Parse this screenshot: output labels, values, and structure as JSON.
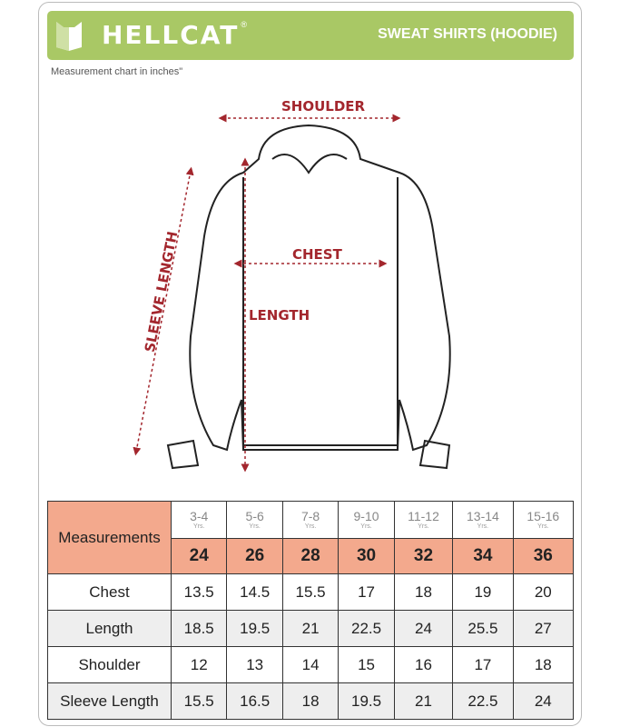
{
  "header": {
    "brand": "HELLCAT",
    "registered": "®",
    "product": "SWEAT SHIRTS (HOODIE)"
  },
  "subtitle": "Measurement chart in inches\"",
  "diagram": {
    "shoulder": "SHOULDER",
    "chest": "CHEST",
    "length": "LENGTH",
    "sleeve": "SLEEVE LENGTH",
    "accent": "#a3262d"
  },
  "table": {
    "label": "Measurements",
    "ages": [
      "3-4",
      "5-6",
      "7-8",
      "9-10",
      "11-12",
      "13-14",
      "15-16"
    ],
    "age_unit": "Yrs.",
    "sizes": [
      "24",
      "26",
      "28",
      "30",
      "32",
      "34",
      "36"
    ],
    "rows": [
      {
        "name": "Chest",
        "values": [
          "13.5",
          "14.5",
          "15.5",
          "17",
          "18",
          "19",
          "20"
        ]
      },
      {
        "name": "Length",
        "values": [
          "18.5",
          "19.5",
          "21",
          "22.5",
          "24",
          "25.5",
          "27"
        ]
      },
      {
        "name": "Shoulder",
        "values": [
          "12",
          "13",
          "14",
          "15",
          "16",
          "17",
          "18"
        ]
      },
      {
        "name": "Sleeve Length",
        "values": [
          "15.5",
          "16.5",
          "18",
          "19.5",
          "21",
          "22.5",
          "24"
        ]
      }
    ]
  }
}
